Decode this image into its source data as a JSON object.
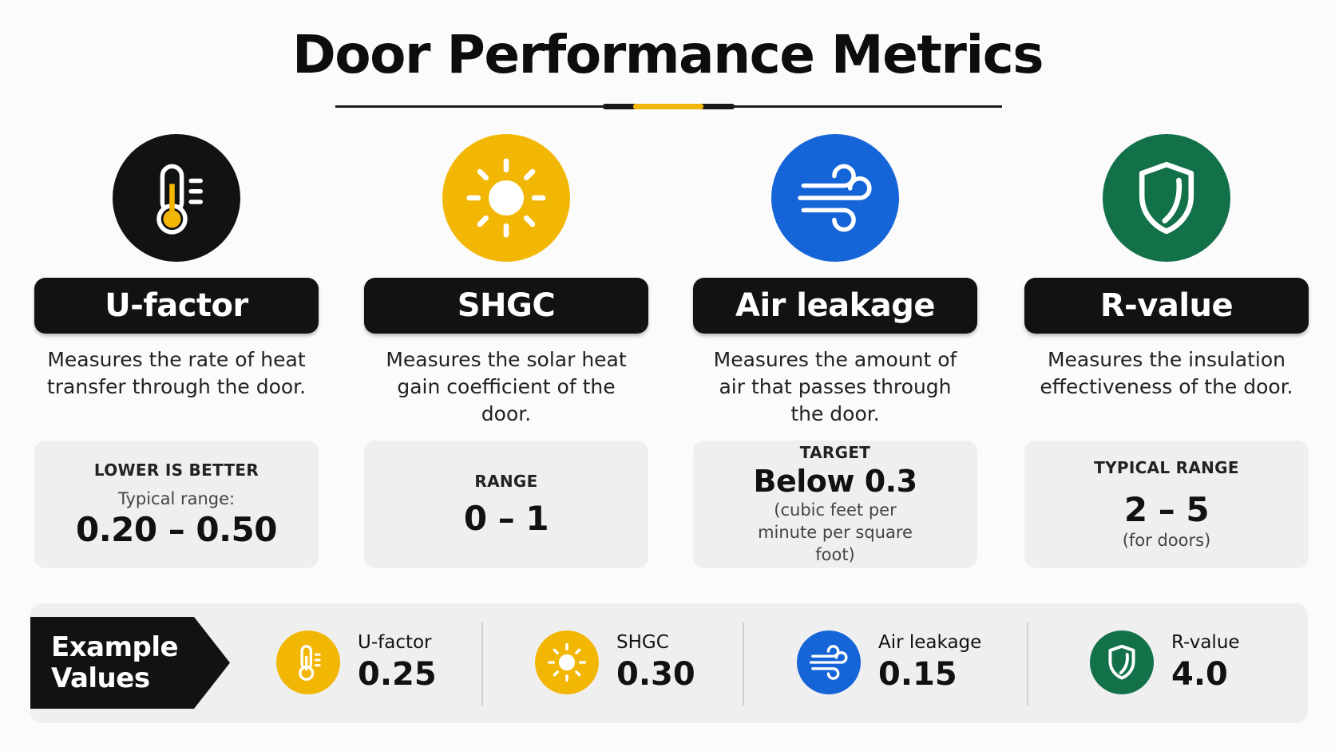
{
  "title": "Door Performance Metrics",
  "colors": {
    "black": "#121212",
    "yellow": "#f2b705",
    "blue": "#1565d8",
    "green": "#13714a",
    "card": "#efefef"
  },
  "metrics": [
    {
      "icon": "thermometer-icon",
      "label": "U-factor",
      "description": "Measures the rate of heat transfer through the door.",
      "kicker": "LOWER IS BETTER",
      "sub": "Typical range:",
      "value": "0.20 – 0.50",
      "note": ""
    },
    {
      "icon": "sun-icon",
      "label": "SHGC",
      "description": "Measures the solar heat gain coefficient of the door.",
      "kicker": "RANGE",
      "sub": "",
      "value": "0 – 1",
      "note": ""
    },
    {
      "icon": "wind-icon",
      "label": "Air leakage",
      "description": "Measures the amount of air that passes through the door.",
      "kicker": "TARGET",
      "sub": "",
      "value": "Below 0.3",
      "note": "(cubic feet per minute per square foot)"
    },
    {
      "icon": "shield-icon",
      "label": "R-value",
      "description": "Measures the insulation effectiveness of the door.",
      "kicker": "TYPICAL RANGE",
      "sub": "",
      "value": "2 – 5",
      "note": "(for doors)"
    }
  ],
  "examples": {
    "heading": "Example Values",
    "items": [
      {
        "icon": "thermometer-icon",
        "label": "U-factor",
        "value": "0.25"
      },
      {
        "icon": "sun-icon",
        "label": "SHGC",
        "value": "0.30"
      },
      {
        "icon": "wind-icon",
        "label": "Air leakage",
        "value": "0.15"
      },
      {
        "icon": "shield-icon",
        "label": "R-value",
        "value": "4.0"
      }
    ]
  }
}
